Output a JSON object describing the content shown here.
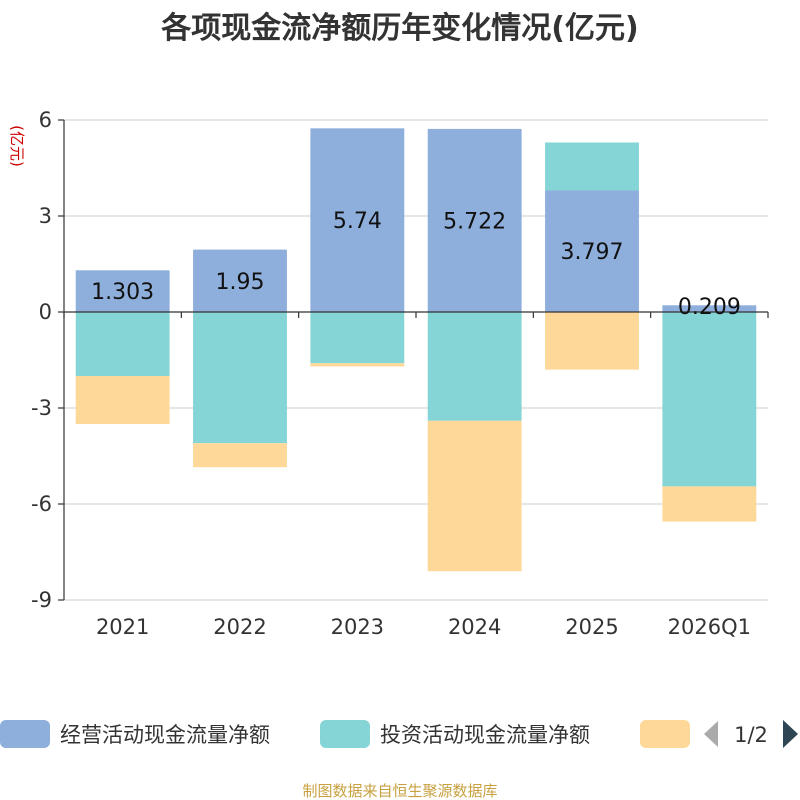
{
  "chart_data": {
    "type": "bar",
    "stacked": true,
    "title": "各项现金流净额历年变化情况(亿元)",
    "ylabel": "(亿元)",
    "ylim": [
      -9,
      6
    ],
    "yticks": [
      6,
      3,
      0,
      -3,
      -6,
      -9
    ],
    "grid": true,
    "categories": [
      "2021",
      "2022",
      "2023",
      "2024",
      "2025",
      "2026Q1"
    ],
    "series": [
      {
        "name": "经营活动现金流量净额",
        "color": "#8eaedb",
        "values": [
          1.303,
          1.95,
          5.74,
          5.722,
          3.797,
          0.209
        ]
      },
      {
        "name": "投资活动现金流量净额",
        "color": "#85d4d6",
        "values": [
          -2.0,
          -4.1,
          -1.6,
          -3.4,
          1.5,
          -5.45
        ]
      },
      {
        "name": "",
        "color": "#fdd899",
        "values": [
          -1.5,
          -0.75,
          -0.1,
          -4.7,
          -1.8,
          -1.1
        ]
      }
    ],
    "data_labels": [
      "1.303",
      "1.95",
      "5.74",
      "5.722",
      "3.797",
      "0.209"
    ]
  },
  "legend": {
    "items": [
      {
        "label": "经营活动现金流量净额",
        "color": "#8eaedb"
      },
      {
        "label": "投资活动现金流量净额",
        "color": "#85d4d6"
      },
      {
        "label": "",
        "color": "#fdd899"
      }
    ],
    "page": "1/2",
    "arrow_color": "#aaaaaa",
    "arrow_active_color": "#2f4554"
  },
  "source": "制图数据来自恒生聚源数据库"
}
